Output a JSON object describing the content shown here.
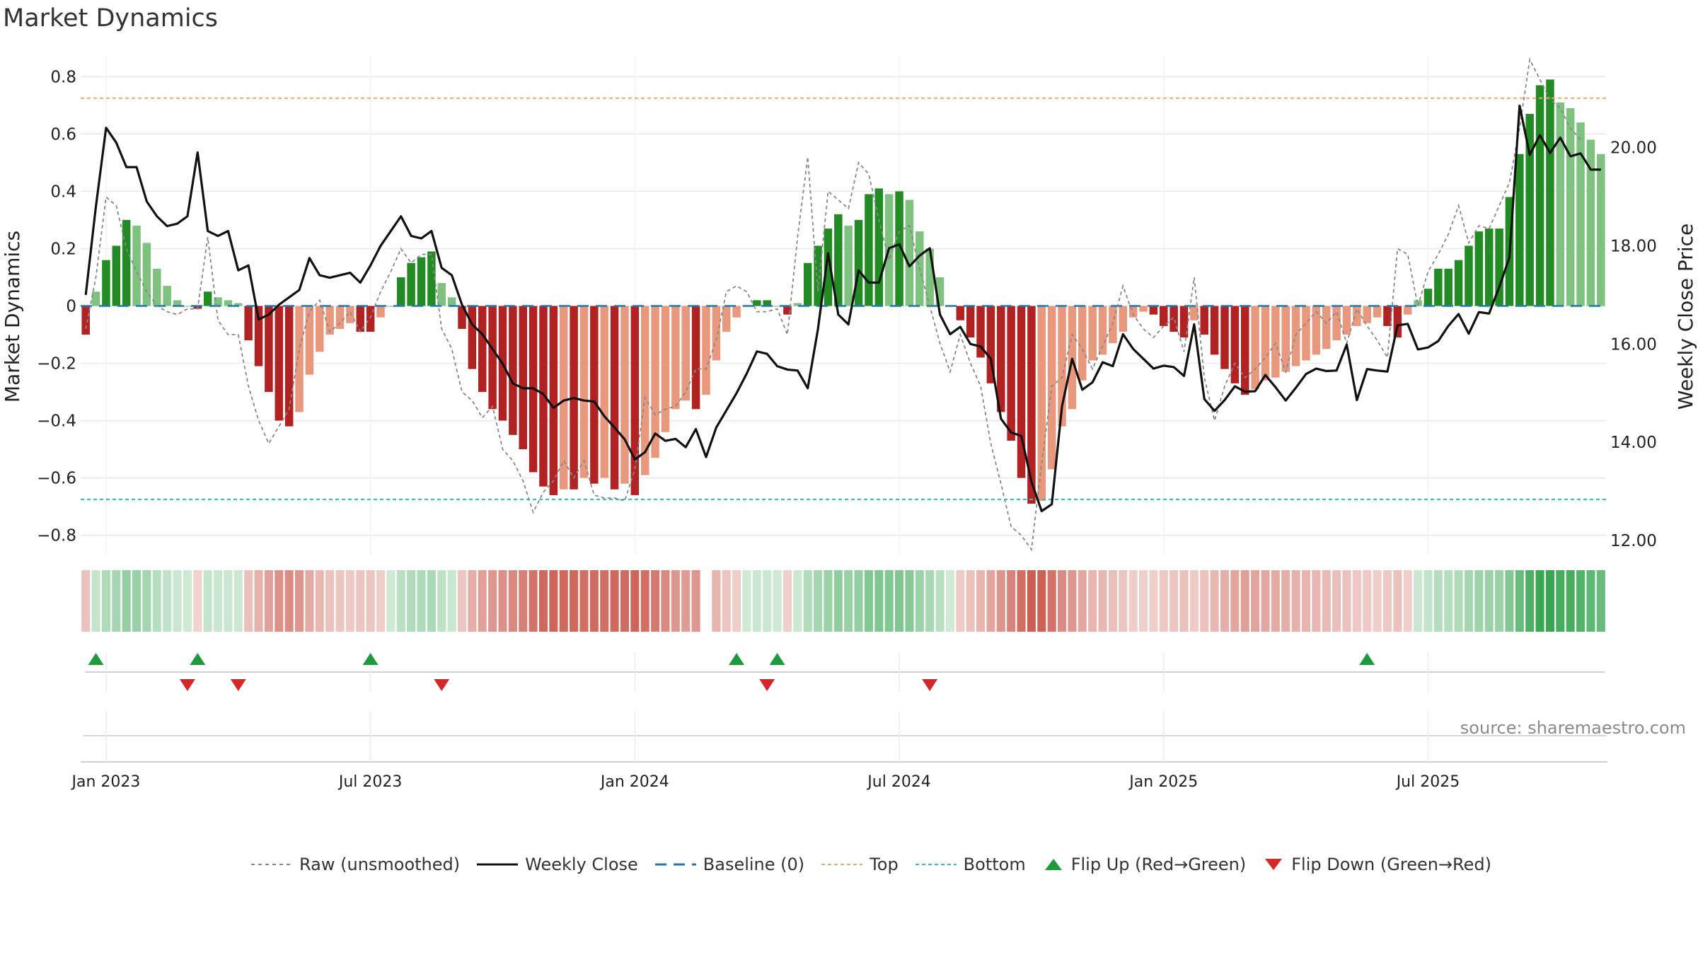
{
  "title": "Market Dynamics",
  "source": "source: sharemaestro.com",
  "chart_data": {
    "type": "bar",
    "title": "Market Dynamics",
    "ylabel_left": "Market Dynamics",
    "ylabel_right": "Weekly Close Price",
    "ylim_left": [
      -0.87,
      0.87
    ],
    "ylim_right": [
      11.7,
      21.85
    ],
    "left_ticks": [
      "0.8",
      "0.6",
      "0.4",
      "0.2",
      "0",
      "−0.2",
      "−0.4",
      "−0.6",
      "−0.8"
    ],
    "left_tick_values": [
      0.8,
      0.6,
      0.4,
      0.2,
      0,
      -0.2,
      -0.4,
      -0.6,
      -0.8
    ],
    "right_ticks": [
      "20.00",
      "18.00",
      "16.00",
      "14.00",
      "12.00"
    ],
    "right_tick_values": [
      20,
      18,
      16,
      14,
      12
    ],
    "x_ticks": [
      "Jan 2023",
      "Jul 2023",
      "Jan 2024",
      "Jul 2024",
      "Jan 2025",
      "Jul 2025"
    ],
    "x_tick_weeks": [
      2,
      28,
      54,
      80,
      106,
      132
    ],
    "grid": true,
    "first_week": "2022-12-19",
    "top_threshold": 0.725,
    "bottom_threshold": -0.675,
    "baseline": 0,
    "values": [
      -0.1,
      0.05,
      0.16,
      0.21,
      0.3,
      0.28,
      0.22,
      0.13,
      0.07,
      0.02,
      0.0,
      -0.01,
      0.05,
      0.03,
      0.02,
      0.01,
      -0.12,
      -0.21,
      -0.3,
      -0.4,
      -0.42,
      -0.37,
      -0.24,
      -0.16,
      -0.1,
      -0.08,
      -0.06,
      -0.09,
      -0.09,
      -0.04,
      0.0,
      0.1,
      0.15,
      0.17,
      0.19,
      0.08,
      0.03,
      -0.08,
      -0.22,
      -0.3,
      -0.36,
      -0.4,
      -0.45,
      -0.5,
      -0.58,
      -0.63,
      -0.66,
      -0.64,
      -0.64,
      -0.6,
      -0.62,
      -0.6,
      -0.64,
      -0.62,
      -0.66,
      -0.59,
      -0.53,
      -0.44,
      -0.36,
      -0.33,
      -0.36,
      -0.31,
      -0.19,
      -0.09,
      -0.04,
      0.0,
      0.02,
      0.02,
      0.0,
      -0.03,
      0.01,
      0.15,
      0.21,
      0.27,
      0.32,
      0.28,
      0.3,
      0.39,
      0.41,
      0.39,
      0.4,
      0.37,
      0.26,
      0.2,
      0.1,
      0.0,
      -0.05,
      -0.11,
      -0.18,
      -0.27,
      -0.37,
      -0.47,
      -0.6,
      -0.69,
      -0.68,
      -0.57,
      -0.42,
      -0.36,
      -0.26,
      -0.19,
      -0.17,
      -0.13,
      -0.09,
      -0.04,
      -0.02,
      -0.03,
      -0.07,
      -0.09,
      -0.11,
      -0.05,
      -0.1,
      -0.17,
      -0.22,
      -0.27,
      -0.31,
      -0.29,
      -0.26,
      -0.25,
      -0.23,
      -0.21,
      -0.19,
      -0.17,
      -0.15,
      -0.12,
      -0.1,
      -0.07,
      -0.06,
      -0.04,
      -0.07,
      -0.11,
      -0.03,
      0.02,
      0.06,
      0.13,
      0.13,
      0.16,
      0.21,
      0.26,
      0.27,
      0.27,
      0.38,
      0.53,
      0.67,
      0.77,
      0.79,
      0.71,
      0.69,
      0.64,
      0.58,
      0.53
    ],
    "series": [
      {
        "name": "Raw (unsmoothed)",
        "color": "#888888",
        "values": [
          -0.08,
          0.1,
          0.38,
          0.35,
          0.2,
          0.12,
          0.05,
          0.0,
          -0.02,
          -0.03,
          -0.01,
          -0.01,
          0.24,
          -0.05,
          -0.1,
          -0.1,
          -0.28,
          -0.4,
          -0.48,
          -0.42,
          -0.36,
          -0.15,
          -0.02,
          0.02,
          -0.09,
          -0.06,
          -0.02,
          -0.09,
          -0.04,
          0.05,
          0.12,
          0.2,
          0.15,
          0.18,
          0.18,
          -0.08,
          -0.15,
          -0.3,
          -0.33,
          -0.39,
          -0.35,
          -0.5,
          -0.54,
          -0.61,
          -0.72,
          -0.65,
          -0.61,
          -0.54,
          -0.6,
          -0.54,
          -0.66,
          -0.67,
          -0.67,
          -0.68,
          -0.57,
          -0.32,
          -0.38,
          -0.36,
          -0.35,
          -0.3,
          -0.22,
          -0.22,
          -0.12,
          0.05,
          0.07,
          0.05,
          -0.02,
          -0.02,
          -0.01,
          -0.1,
          0.24,
          0.52,
          0.05,
          0.4,
          0.37,
          0.34,
          0.5,
          0.46,
          0.3,
          0.16,
          0.26,
          0.28,
          0.13,
          0.0,
          -0.13,
          -0.23,
          -0.1,
          -0.2,
          -0.28,
          -0.48,
          -0.62,
          -0.77,
          -0.8,
          -0.85,
          -0.55,
          -0.28,
          -0.25,
          -0.1,
          -0.15,
          -0.22,
          -0.14,
          -0.06,
          0.07,
          -0.03,
          -0.08,
          -0.11,
          -0.07,
          -0.04,
          -0.16,
          0.1,
          -0.25,
          -0.4,
          -0.28,
          -0.2,
          -0.25,
          -0.22,
          -0.18,
          -0.13,
          -0.23,
          -0.1,
          -0.06,
          -0.02,
          -0.06,
          -0.02,
          -0.13,
          -0.01,
          -0.07,
          -0.12,
          -0.18,
          0.2,
          0.18,
          0.0,
          0.12,
          0.18,
          0.25,
          0.35,
          0.22,
          0.28,
          0.27,
          0.35,
          0.43,
          0.62,
          0.86,
          0.79,
          0.72,
          0.69,
          0.62,
          0.58
        ]
      },
      {
        "name": "Weekly Close",
        "color": "#111111",
        "values": [
          17.0,
          18.8,
          20.4,
          20.1,
          19.6,
          19.6,
          18.9,
          18.6,
          18.4,
          18.45,
          18.6,
          19.9,
          18.3,
          18.2,
          18.3,
          17.5,
          17.6,
          16.5,
          16.6,
          16.8,
          16.95,
          17.1,
          17.75,
          17.4,
          17.35,
          17.4,
          17.45,
          17.25,
          17.6,
          18.0,
          18.3,
          18.6,
          18.2,
          18.15,
          18.3,
          17.55,
          17.4,
          16.8,
          16.4,
          16.2,
          15.9,
          15.6,
          15.2,
          15.1,
          15.1,
          14.98,
          14.7,
          14.85,
          14.9,
          14.85,
          14.83,
          14.53,
          14.3,
          14.06,
          13.65,
          13.8,
          14.18,
          14.03,
          14.07,
          13.9,
          14.27,
          13.7,
          14.3,
          14.65,
          15.0,
          15.4,
          15.85,
          15.8,
          15.55,
          15.48,
          15.46,
          15.1,
          16.3,
          17.85,
          16.6,
          16.4,
          17.5,
          17.25,
          17.25,
          17.95,
          18.03,
          17.58,
          17.8,
          17.95,
          16.6,
          16.2,
          16.35,
          16.0,
          15.95,
          15.7,
          14.48,
          14.2,
          14.13,
          13.2,
          12.6,
          12.74,
          14.73,
          15.7,
          15.07,
          15.22,
          15.63,
          15.55,
          16.2,
          15.9,
          15.7,
          15.5,
          15.56,
          15.53,
          15.35,
          16.4,
          14.88,
          14.64,
          14.86,
          15.14,
          15.03,
          15.04,
          15.37,
          15.12,
          14.85,
          15.11,
          15.39,
          15.5,
          15.45,
          15.46,
          15.99,
          14.86,
          15.49,
          15.46,
          15.44,
          16.38,
          16.41,
          15.89,
          15.93,
          16.06,
          16.37,
          16.61,
          16.21,
          16.65,
          16.62,
          17.16,
          17.76,
          20.85,
          19.85,
          20.25,
          19.89,
          20.2,
          19.82,
          19.88,
          19.55,
          19.55
        ]
      },
      {
        "name": "Baseline (0)",
        "color": "#1f77b4"
      },
      {
        "name": "Top",
        "color": "#f0a868"
      },
      {
        "name": "Bottom",
        "color": "#2bc3c8"
      }
    ],
    "flip_up_weeks": [
      1,
      11,
      28,
      64,
      68,
      126
    ],
    "flip_down_weeks": [
      10,
      15,
      35,
      67,
      83
    ],
    "heat_gap_weeks": [
      61
    ]
  },
  "colors": {
    "green_strong": "#238b23",
    "green_light": "#7fc17f",
    "red_strong": "#b22222",
    "red_light": "#e8987d",
    "heat_green": "#1e9a3c",
    "heat_red": "#c0392b",
    "grid": "#eaeaea",
    "axis_text": "#222222",
    "flip_up": "#1e9a3c",
    "flip_down": "#d62728"
  },
  "legend": [
    {
      "label": "Raw (unsmoothed)",
      "icon": "dotted-gray-line-icon"
    },
    {
      "label": "Weekly Close",
      "icon": "solid-black-line-icon"
    },
    {
      "label": "Baseline (0)",
      "icon": "dashed-blue-line-icon"
    },
    {
      "label": "Top",
      "icon": "dotted-orange-line-icon"
    },
    {
      "label": "Bottom",
      "icon": "dotted-cyan-line-icon"
    },
    {
      "label": "Flip Up (Red→Green)",
      "icon": "green-triangle-up-icon"
    },
    {
      "label": "Flip Down (Green→Red)",
      "icon": "red-triangle-down-icon"
    }
  ]
}
